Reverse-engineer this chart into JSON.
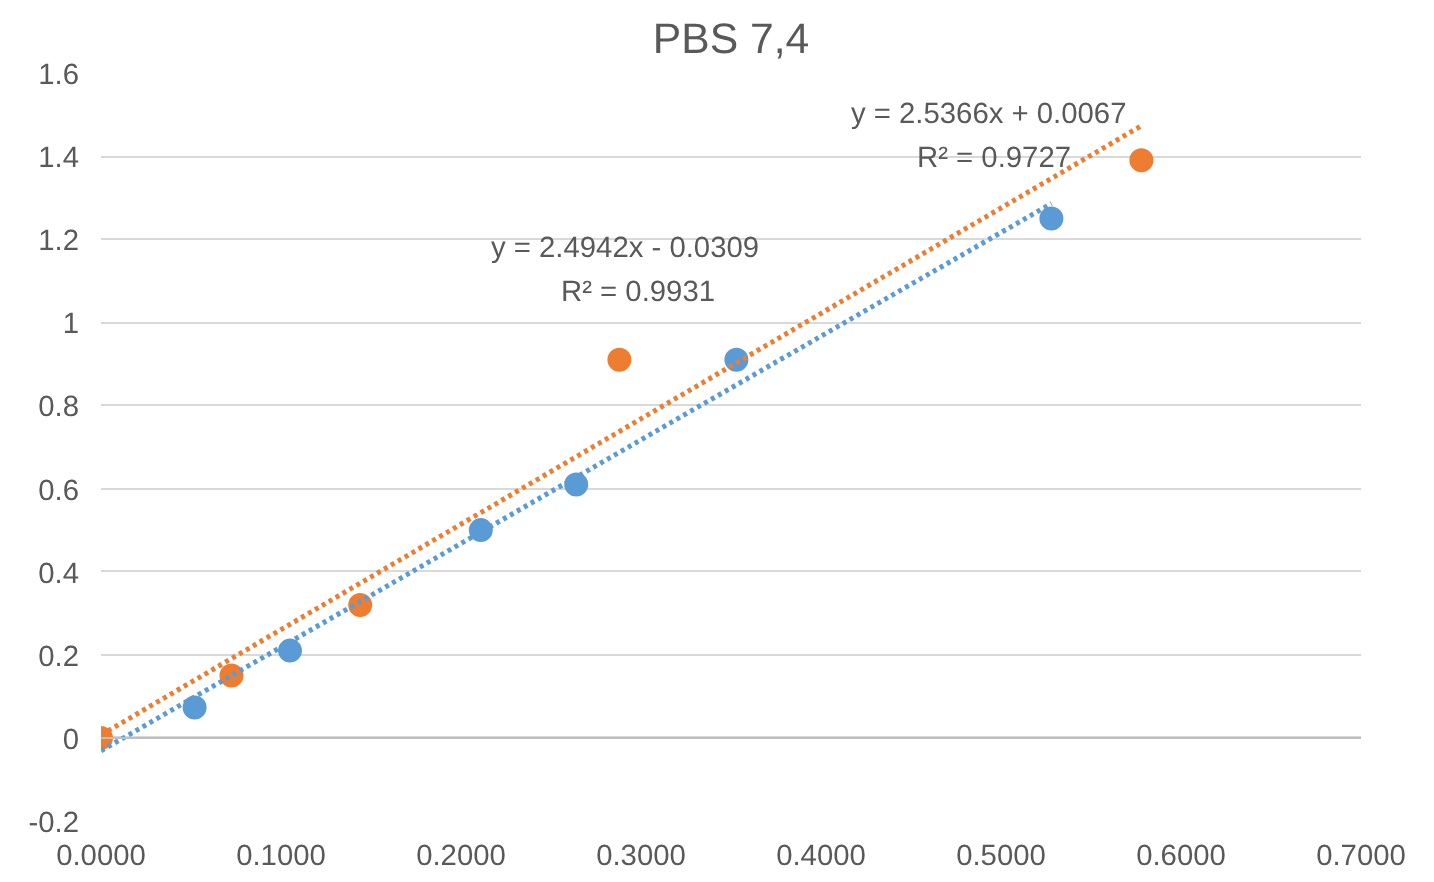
{
  "chart_data": {
    "type": "scatter",
    "title": "PBS 7,4",
    "series": [
      {
        "color": "#5b9bd5",
        "marker": "circle",
        "x": [
          0.052,
          0.105,
          0.211,
          0.264,
          0.353,
          0.528
        ],
        "values": [
          0.073,
          0.21,
          0.5,
          0.61,
          0.91,
          1.25
        ]
      },
      {
        "color": "#ed7d31",
        "marker": "circle",
        "x": [
          0.0,
          0.0725,
          0.144,
          0.288,
          0.578
        ],
        "values": [
          0.0,
          0.15,
          0.32,
          0.91,
          1.39
        ]
      },
      {
        "type": "line",
        "color": "#5b9bd5",
        "line_style": "dotted",
        "x": [
          0.0,
          0.528
        ],
        "values": [
          -0.031,
          1.286
        ]
      },
      {
        "type": "line",
        "color": "#ed7d31",
        "line_style": "dotted",
        "x": [
          0.0,
          0.578
        ],
        "values": [
          0.007,
          1.473
        ]
      }
    ],
    "annotations": [
      "y = 2.4942x - 0.0309",
      "R² = 0.9931",
      "y = 2.5366x + 0.0067",
      "R² = 0.9727"
    ],
    "xlim": [
      0,
      0.7
    ],
    "xticks": [
      {
        "value": 0,
        "label": "0.0000"
      },
      {
        "value": 0.1,
        "label": "0.1000"
      },
      {
        "value": 0.2,
        "label": "0.2000"
      },
      {
        "value": 0.3,
        "label": "0.3000"
      },
      {
        "value": 0.4,
        "label": "0.4000"
      },
      {
        "value": 0.5,
        "label": "0.5000"
      },
      {
        "value": 0.6,
        "label": "0.6000"
      },
      {
        "value": 0.7,
        "label": "0.7000"
      }
    ],
    "ylim": [
      -0.2,
      1.6
    ],
    "yticks": [
      -0.2,
      0,
      0.2,
      0.4,
      0.6,
      0.8,
      1,
      1.2,
      1.4,
      1.6
    ],
    "grid": "y"
  }
}
